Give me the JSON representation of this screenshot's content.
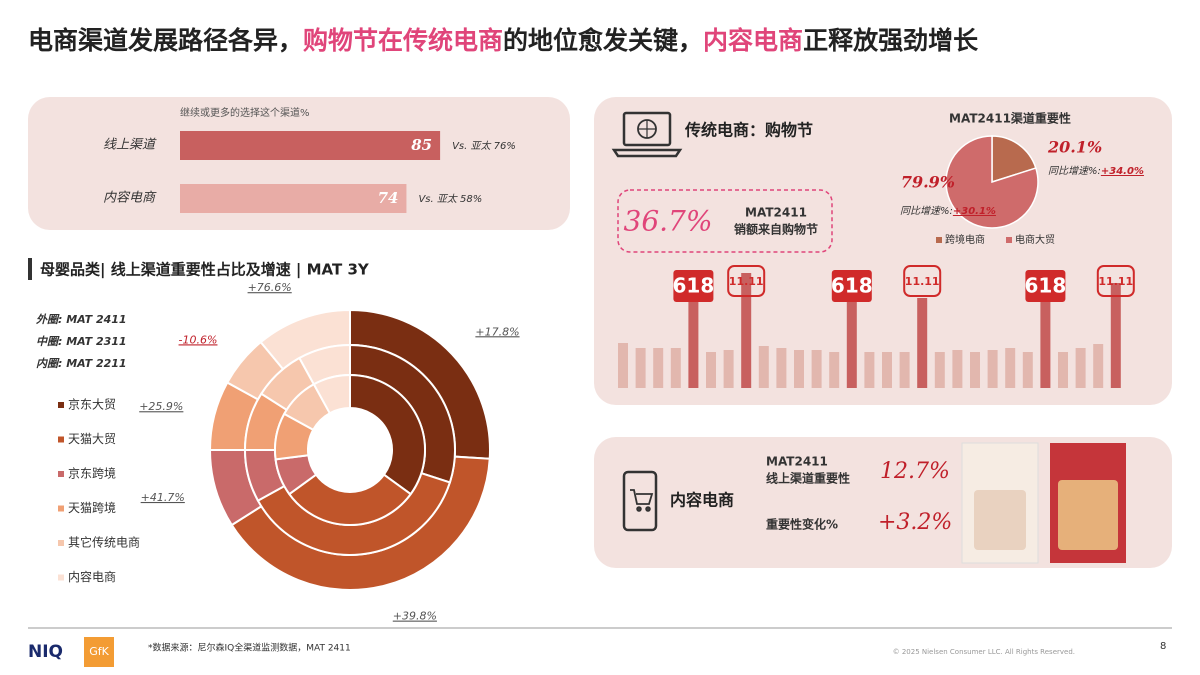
{
  "title": {
    "part1": "电商渠道发展路径各异，",
    "part2": "购物节在传统电商",
    "part3": "的地位愈发关键，",
    "part4": "内容电商",
    "part5": "正释放强劲增长"
  },
  "online_bars": {
    "type": "bar",
    "subtitle": "继续或更多的选择这个渠道%",
    "categories": [
      "线上渠道",
      "内容电商"
    ],
    "values": [
      85,
      74
    ],
    "comparisons": [
      "Vs. 亚太 76%",
      "Vs. 亚太 58%"
    ],
    "colors": [
      "#c8605f",
      "#e8aca6"
    ]
  },
  "donut": {
    "type": "donut",
    "title": "母婴品类| 线上渠道重要性占比及增速 | MAT 3Y",
    "ring_labels": [
      "外圈: MAT 2411",
      "中圈: MAT 2311",
      "内圈: MAT 2211"
    ],
    "series": [
      {
        "name": "京东大贸",
        "color": "#7a2e12",
        "values": [
          26,
          30,
          35
        ],
        "growth_label": "+17.8%"
      },
      {
        "name": "天猫大贸",
        "color": "#c0552a",
        "values": [
          40,
          37,
          30
        ],
        "growth_label": "+39.8%"
      },
      {
        "name": "京东跨境",
        "color": "#c96a6a",
        "values": [
          9,
          8,
          8
        ],
        "growth_label": "+41.7%"
      },
      {
        "name": "天猫跨境",
        "color": "#f0a074",
        "values": [
          8,
          9,
          10
        ],
        "growth_label": "+25.9%"
      },
      {
        "name": "其它传统电商",
        "color": "#f6c7ad",
        "values": [
          6,
          8,
          9
        ],
        "growth_label": "-10.6%"
      },
      {
        "name": "内容电商",
        "color": "#fbe1d4",
        "values": [
          11,
          8,
          8
        ],
        "growth_label": "+76.6%"
      }
    ]
  },
  "traditional": {
    "heading": "传统电商：购物节",
    "stat_value": "36.7%",
    "stat_label1": "MAT2411",
    "stat_label2": "销额来自购物节",
    "badge_618": "618",
    "badge_1111": "11.11",
    "pie": {
      "type": "pie",
      "title": "MAT2411渠道重要性",
      "categories": [
        "跨境电商",
        "电商大贸"
      ],
      "values": [
        20.1,
        79.9
      ],
      "value_labels": [
        "20.1%",
        "79.9%"
      ],
      "colors": [
        "#b86a4e",
        "#cf6b6b"
      ],
      "growth_prefix": "同比增速%:",
      "growth_labels": [
        "+34.0%",
        "+30.1%"
      ]
    }
  },
  "content": {
    "heading": "内容电商",
    "label1": "MAT2411",
    "label2": "线上渠道重要性",
    "value1": "12.7%",
    "label3": "重要性变化%",
    "value2": "+3.2%"
  },
  "footer": {
    "logo1": "NIQ",
    "logo2": "GfK",
    "source": "*数据来源：尼尔森IQ全渠道监测数据，MAT 2411",
    "copyright": "© 2025 Nielsen Consumer LLC. All Rights Reserved.",
    "page": "8"
  }
}
